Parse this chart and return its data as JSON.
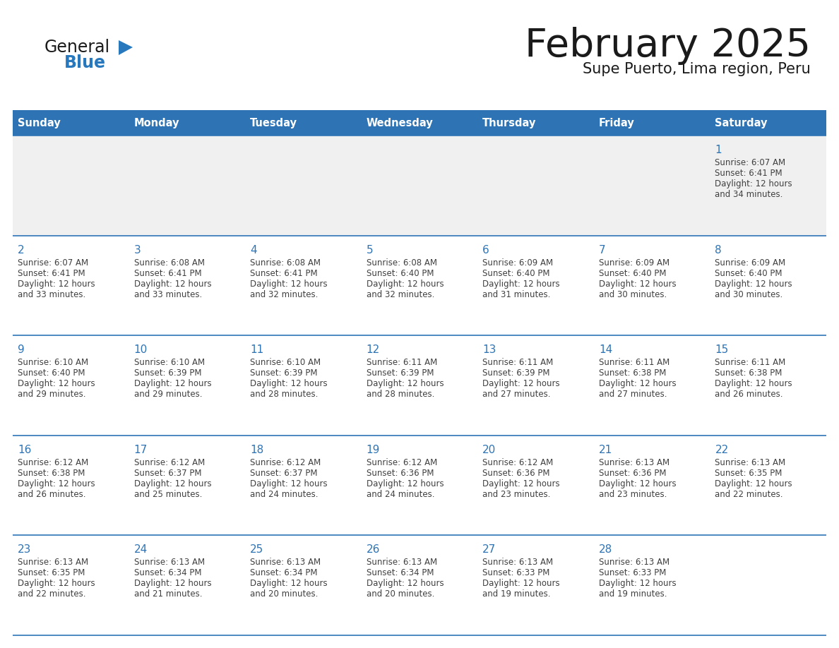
{
  "title": "February 2025",
  "subtitle": "Supe Puerto, Lima region, Peru",
  "days_of_week": [
    "Sunday",
    "Monday",
    "Tuesday",
    "Wednesday",
    "Thursday",
    "Friday",
    "Saturday"
  ],
  "header_bg": "#2E74B5",
  "header_text": "#FFFFFF",
  "row_bg_light": "#FFFFFF",
  "row_bg_gray": "#F0F0F0",
  "title_color": "#1A1A1A",
  "day_num_color": "#2E74B5",
  "info_color": "#404040",
  "logo_black": "#1A1A1A",
  "logo_blue": "#2878BE",
  "calendar": [
    [
      null,
      null,
      null,
      null,
      null,
      null,
      {
        "day": 1,
        "sunrise": "6:07 AM",
        "sunset": "6:41 PM",
        "daylight": "12 hours and 34 minutes."
      }
    ],
    [
      {
        "day": 2,
        "sunrise": "6:07 AM",
        "sunset": "6:41 PM",
        "daylight": "12 hours and 33 minutes."
      },
      {
        "day": 3,
        "sunrise": "6:08 AM",
        "sunset": "6:41 PM",
        "daylight": "12 hours and 33 minutes."
      },
      {
        "day": 4,
        "sunrise": "6:08 AM",
        "sunset": "6:41 PM",
        "daylight": "12 hours and 32 minutes."
      },
      {
        "day": 5,
        "sunrise": "6:08 AM",
        "sunset": "6:40 PM",
        "daylight": "12 hours and 32 minutes."
      },
      {
        "day": 6,
        "sunrise": "6:09 AM",
        "sunset": "6:40 PM",
        "daylight": "12 hours and 31 minutes."
      },
      {
        "day": 7,
        "sunrise": "6:09 AM",
        "sunset": "6:40 PM",
        "daylight": "12 hours and 30 minutes."
      },
      {
        "day": 8,
        "sunrise": "6:09 AM",
        "sunset": "6:40 PM",
        "daylight": "12 hours and 30 minutes."
      }
    ],
    [
      {
        "day": 9,
        "sunrise": "6:10 AM",
        "sunset": "6:40 PM",
        "daylight": "12 hours and 29 minutes."
      },
      {
        "day": 10,
        "sunrise": "6:10 AM",
        "sunset": "6:39 PM",
        "daylight": "12 hours and 29 minutes."
      },
      {
        "day": 11,
        "sunrise": "6:10 AM",
        "sunset": "6:39 PM",
        "daylight": "12 hours and 28 minutes."
      },
      {
        "day": 12,
        "sunrise": "6:11 AM",
        "sunset": "6:39 PM",
        "daylight": "12 hours and 28 minutes."
      },
      {
        "day": 13,
        "sunrise": "6:11 AM",
        "sunset": "6:39 PM",
        "daylight": "12 hours and 27 minutes."
      },
      {
        "day": 14,
        "sunrise": "6:11 AM",
        "sunset": "6:38 PM",
        "daylight": "12 hours and 27 minutes."
      },
      {
        "day": 15,
        "sunrise": "6:11 AM",
        "sunset": "6:38 PM",
        "daylight": "12 hours and 26 minutes."
      }
    ],
    [
      {
        "day": 16,
        "sunrise": "6:12 AM",
        "sunset": "6:38 PM",
        "daylight": "12 hours and 26 minutes."
      },
      {
        "day": 17,
        "sunrise": "6:12 AM",
        "sunset": "6:37 PM",
        "daylight": "12 hours and 25 minutes."
      },
      {
        "day": 18,
        "sunrise": "6:12 AM",
        "sunset": "6:37 PM",
        "daylight": "12 hours and 24 minutes."
      },
      {
        "day": 19,
        "sunrise": "6:12 AM",
        "sunset": "6:36 PM",
        "daylight": "12 hours and 24 minutes."
      },
      {
        "day": 20,
        "sunrise": "6:12 AM",
        "sunset": "6:36 PM",
        "daylight": "12 hours and 23 minutes."
      },
      {
        "day": 21,
        "sunrise": "6:13 AM",
        "sunset": "6:36 PM",
        "daylight": "12 hours and 23 minutes."
      },
      {
        "day": 22,
        "sunrise": "6:13 AM",
        "sunset": "6:35 PM",
        "daylight": "12 hours and 22 minutes."
      }
    ],
    [
      {
        "day": 23,
        "sunrise": "6:13 AM",
        "sunset": "6:35 PM",
        "daylight": "12 hours and 22 minutes."
      },
      {
        "day": 24,
        "sunrise": "6:13 AM",
        "sunset": "6:34 PM",
        "daylight": "12 hours and 21 minutes."
      },
      {
        "day": 25,
        "sunrise": "6:13 AM",
        "sunset": "6:34 PM",
        "daylight": "12 hours and 20 minutes."
      },
      {
        "day": 26,
        "sunrise": "6:13 AM",
        "sunset": "6:34 PM",
        "daylight": "12 hours and 20 minutes."
      },
      {
        "day": 27,
        "sunrise": "6:13 AM",
        "sunset": "6:33 PM",
        "daylight": "12 hours and 19 minutes."
      },
      {
        "day": 28,
        "sunrise": "6:13 AM",
        "sunset": "6:33 PM",
        "daylight": "12 hours and 19 minutes."
      },
      null
    ]
  ]
}
